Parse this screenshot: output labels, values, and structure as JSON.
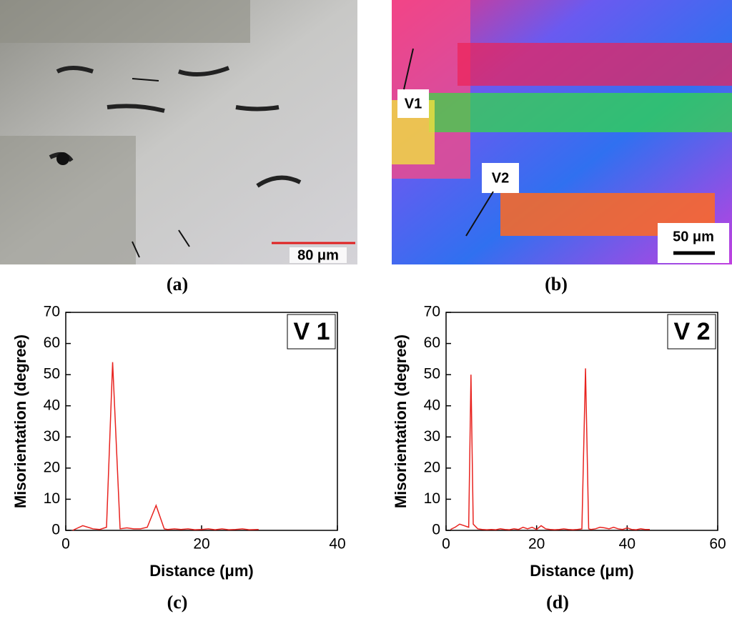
{
  "figure": {
    "panels": [
      {
        "label": "(a)",
        "scale_bar": "80 μm"
      },
      {
        "label": "(b)",
        "scale_bar": "50 μm",
        "annotations": [
          "V1",
          "V2"
        ]
      },
      {
        "label": "(c)"
      },
      {
        "label": "(d)"
      }
    ]
  },
  "chart_data": [
    {
      "type": "line",
      "x_label": "Distance (μm)",
      "y_label": "Misorientation (degree)",
      "annotation": "V 1",
      "x": [
        1,
        2.5,
        4,
        5,
        6,
        6.9,
        8,
        9,
        10,
        11,
        12,
        13.3,
        14.5,
        15,
        16,
        17,
        18,
        19,
        20,
        21,
        22,
        23,
        24,
        25,
        26,
        27,
        28.4
      ],
      "series": [
        {
          "color": "#e8231f",
          "values": [
            0,
            1.5,
            0.5,
            0.3,
            1,
            54,
            0.5,
            0.8,
            0.5,
            0.5,
            1,
            8,
            0.5,
            0.3,
            0.5,
            0.3,
            0.5,
            0.2,
            0.3,
            0.5,
            0.2,
            0.5,
            0.2,
            0.3,
            0.5,
            0.2,
            0.3
          ]
        }
      ],
      "xlim": [
        0,
        40
      ],
      "xticks": [
        0,
        20,
        40
      ],
      "ylim": [
        0,
        70
      ],
      "yticks": [
        0,
        10,
        20,
        30,
        40,
        50,
        60,
        70
      ]
    },
    {
      "type": "line",
      "x_label": "Distance (μm)",
      "y_label": "Misorientation (degree)",
      "annotation": "V 2",
      "x": [
        1,
        2,
        3,
        4,
        5,
        5.5,
        6,
        7,
        8,
        9,
        10,
        11,
        12,
        13,
        14,
        15,
        16,
        17,
        18,
        19,
        20,
        21,
        22,
        23,
        24,
        25,
        26,
        27,
        28,
        29,
        30,
        30.8,
        31.5,
        32,
        33,
        34,
        35,
        36,
        37,
        38,
        39,
        40,
        41,
        42,
        43,
        44,
        45
      ],
      "series": [
        {
          "color": "#e8231f",
          "values": [
            0.3,
            1,
            2,
            1.5,
            1,
            50,
            2,
            0.5,
            0.3,
            0.2,
            0.3,
            0.2,
            0.5,
            0.3,
            0.2,
            0.5,
            0.3,
            1,
            0.5,
            1,
            0.3,
            1.5,
            0.5,
            0.3,
            0.2,
            0.3,
            0.5,
            0.3,
            0.2,
            0.3,
            0.5,
            52,
            0.5,
            0.3,
            0.5,
            1,
            0.8,
            0.5,
            1,
            0.5,
            0.3,
            0.8,
            0.3,
            0.2,
            0.5,
            0.3,
            0.3
          ]
        }
      ],
      "xlim": [
        0,
        60
      ],
      "xticks": [
        0,
        20,
        40,
        60
      ],
      "ylim": [
        0,
        70
      ],
      "yticks": [
        0,
        10,
        20,
        30,
        40,
        50,
        60,
        70
      ]
    }
  ]
}
